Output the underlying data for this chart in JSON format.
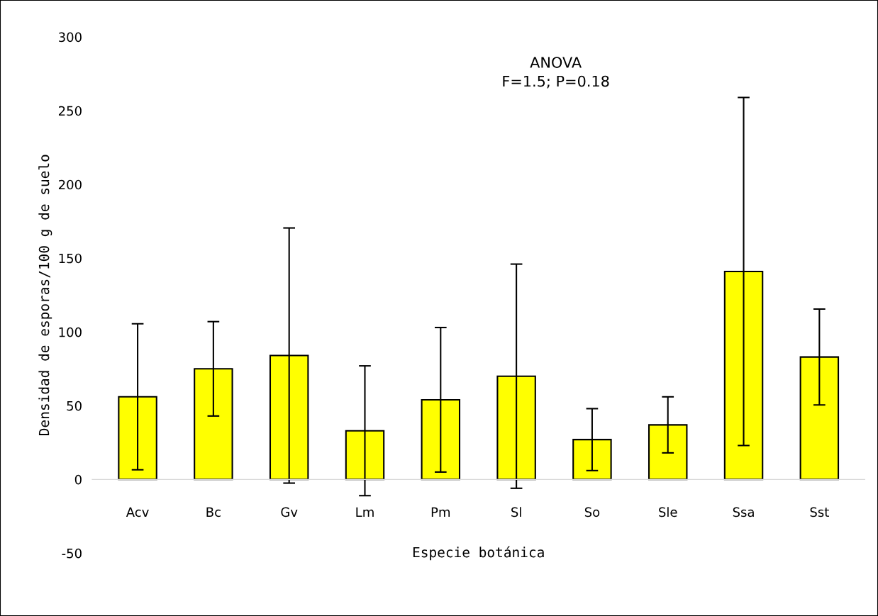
{
  "chart_data": {
    "type": "bar",
    "xlabel": "Especie botánica",
    "ylabel": "Densidad de esporas/100 g de suelo",
    "categories": [
      "Acv",
      "Bc",
      "Gv",
      "Lm",
      "Pm",
      "Sl",
      "So",
      "Sle",
      "Ssa",
      "Sst"
    ],
    "values": [
      56,
      75,
      84,
      33,
      54,
      70,
      27,
      37,
      141,
      83
    ],
    "errors": [
      49.5,
      32,
      86.5,
      44,
      49,
      76,
      21,
      19,
      118,
      32.5
    ],
    "color": "#ffff00",
    "ylim": [
      -50,
      300
    ],
    "yticks": [
      -50,
      0,
      50,
      100,
      150,
      200,
      250,
      300
    ],
    "grid": false,
    "legend": false,
    "annotations": [
      "ANOVA\nF=1.5; P=0.18"
    ]
  }
}
